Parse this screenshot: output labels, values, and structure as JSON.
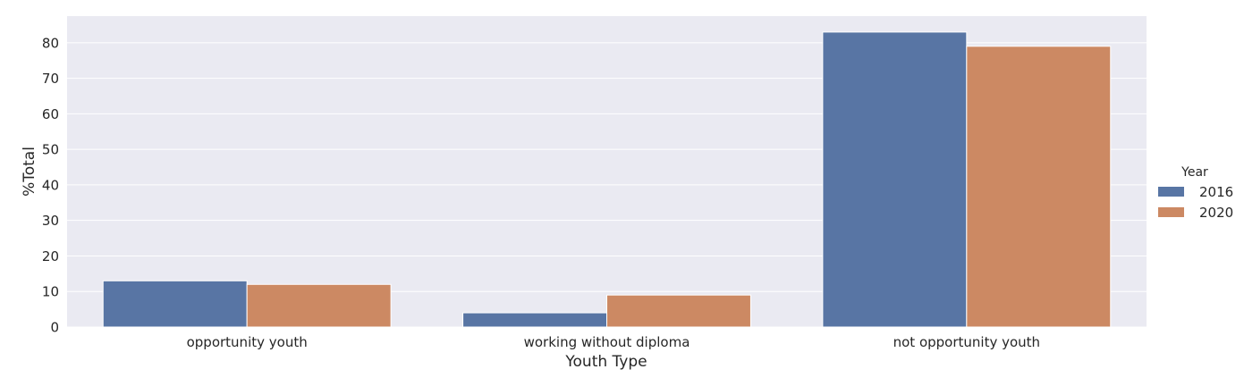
{
  "chart_data": {
    "type": "bar",
    "title": "",
    "xlabel": "Youth Type",
    "ylabel": "%Total",
    "categories": [
      "opportunity youth",
      "working without diploma",
      "not opportunity youth"
    ],
    "series": [
      {
        "name": "2016",
        "values": [
          13,
          4,
          83
        ],
        "color": "#5875a4"
      },
      {
        "name": "2020",
        "values": [
          12,
          9,
          79
        ],
        "color": "#cc8963"
      }
    ],
    "ylim": [
      0,
      87.5
    ],
    "yticks": [
      0,
      10,
      20,
      30,
      40,
      50,
      60,
      70,
      80
    ],
    "grid": true,
    "legend": {
      "title": "Year",
      "position": "right"
    },
    "background": "#eaeaf2"
  }
}
